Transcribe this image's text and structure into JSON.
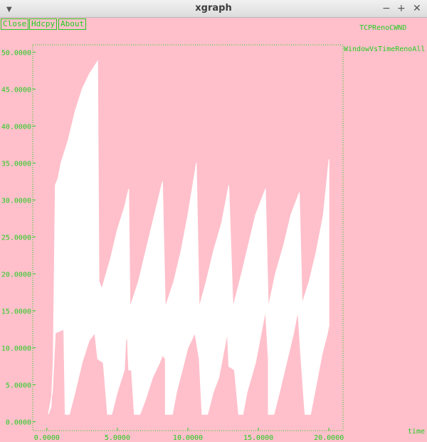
{
  "window": {
    "title": "xgraph",
    "menu_icon": "chevron-down-icon",
    "minimize_icon": "minimize-icon",
    "maximize_icon": "maximize-icon",
    "close_icon": "close-icon"
  },
  "toolbar": {
    "close_label": "Close",
    "hdcpy_label": "Hdcpy",
    "about_label": "About"
  },
  "graph_title": "TCPRenoCWND",
  "colors": {
    "background": "#ffc0cb",
    "axis": "#22cc22",
    "series": "#ffffff"
  },
  "chart_data": {
    "type": "area",
    "title": "",
    "xlabel": "time",
    "ylabel": "",
    "xlim": [
      -1.0,
      21.0
    ],
    "ylim": [
      -1.2,
      51.0
    ],
    "grid": false,
    "x_ticks": [
      "0.0000",
      "5.0000",
      "10.0000",
      "15.0000",
      "20.0000"
    ],
    "x_tick_values": [
      0,
      5,
      10,
      15,
      20
    ],
    "y_ticks": [
      "0.0000",
      "5.0000",
      "10.0000",
      "15.0000",
      "20.0000",
      "25.0000",
      "30.0000",
      "35.0000",
      "40.0000",
      "45.0000",
      "50.0000"
    ],
    "y_tick_values": [
      0,
      5,
      10,
      15,
      20,
      25,
      30,
      35,
      40,
      45,
      50
    ],
    "series": [
      {
        "name": "WindowVsTimeRenoAll",
        "color": "#ffffff",
        "upper": [
          [
            0.1,
            1
          ],
          [
            0.3,
            2
          ],
          [
            0.45,
            8
          ],
          [
            0.5,
            16
          ],
          [
            0.6,
            32
          ],
          [
            0.8,
            33
          ],
          [
            1.0,
            35
          ],
          [
            1.5,
            38
          ],
          [
            2.0,
            42
          ],
          [
            2.5,
            45
          ],
          [
            3.0,
            47
          ],
          [
            3.6,
            48.8
          ],
          [
            3.7,
            19
          ],
          [
            3.9,
            18
          ],
          [
            4.5,
            22
          ],
          [
            5.0,
            26
          ],
          [
            5.5,
            29
          ],
          [
            5.8,
            31.5
          ],
          [
            5.9,
            15.5
          ],
          [
            6.5,
            19
          ],
          [
            7.0,
            23
          ],
          [
            7.5,
            27
          ],
          [
            8.2,
            32.5
          ],
          [
            8.4,
            15.5
          ],
          [
            9.0,
            19
          ],
          [
            9.5,
            23
          ],
          [
            10.0,
            28
          ],
          [
            10.6,
            35
          ],
          [
            10.8,
            15.5
          ],
          [
            11.3,
            19
          ],
          [
            11.8,
            23
          ],
          [
            12.4,
            27
          ],
          [
            12.9,
            32
          ],
          [
            13.2,
            15.5
          ],
          [
            13.8,
            20
          ],
          [
            14.3,
            24
          ],
          [
            14.8,
            28
          ],
          [
            15.5,
            31.5
          ],
          [
            15.7,
            15.5
          ],
          [
            16.2,
            20
          ],
          [
            16.8,
            24
          ],
          [
            17.3,
            28
          ],
          [
            17.9,
            31
          ],
          [
            18.1,
            16
          ],
          [
            18.6,
            19
          ],
          [
            19.1,
            23
          ],
          [
            19.6,
            28
          ],
          [
            20.0,
            35.5
          ]
        ],
        "lower": [
          [
            0.1,
            1
          ],
          [
            0.4,
            4
          ],
          [
            0.6,
            12
          ],
          [
            1.2,
            12.5
          ],
          [
            1.3,
            1
          ],
          [
            1.6,
            1
          ],
          [
            2.0,
            4
          ],
          [
            2.5,
            8
          ],
          [
            3.0,
            11
          ],
          [
            3.4,
            12
          ],
          [
            3.6,
            8.5
          ],
          [
            4.0,
            8
          ],
          [
            4.3,
            1
          ],
          [
            4.6,
            1
          ],
          [
            5.0,
            4
          ],
          [
            5.5,
            7
          ],
          [
            5.6,
            11
          ],
          [
            5.7,
            11.5
          ],
          [
            5.8,
            7
          ],
          [
            6.0,
            7
          ],
          [
            6.2,
            1
          ],
          [
            6.6,
            1
          ],
          [
            7.0,
            3
          ],
          [
            7.5,
            6
          ],
          [
            8.0,
            8
          ],
          [
            8.2,
            9
          ],
          [
            8.4,
            8.5
          ],
          [
            8.4,
            1
          ],
          [
            8.9,
            1
          ],
          [
            9.2,
            4
          ],
          [
            9.6,
            7
          ],
          [
            10.0,
            10
          ],
          [
            10.5,
            12
          ],
          [
            10.8,
            8.5
          ],
          [
            11.0,
            1
          ],
          [
            11.4,
            1
          ],
          [
            11.8,
            4
          ],
          [
            12.2,
            6
          ],
          [
            12.6,
            10
          ],
          [
            12.8,
            12
          ],
          [
            12.9,
            7.5
          ],
          [
            13.3,
            7
          ],
          [
            13.6,
            1
          ],
          [
            13.9,
            1
          ],
          [
            14.2,
            4
          ],
          [
            14.8,
            8
          ],
          [
            15.2,
            12
          ],
          [
            15.5,
            15
          ],
          [
            15.7,
            8.5
          ],
          [
            15.7,
            1
          ],
          [
            16.1,
            1
          ],
          [
            16.5,
            4
          ],
          [
            17.0,
            8
          ],
          [
            17.5,
            12
          ],
          [
            17.8,
            15
          ],
          [
            18.0,
            9
          ],
          [
            18.3,
            1
          ],
          [
            18.7,
            1
          ],
          [
            19.0,
            4
          ],
          [
            19.5,
            9
          ],
          [
            19.9,
            12
          ],
          [
            20.0,
            13
          ]
        ]
      }
    ]
  }
}
